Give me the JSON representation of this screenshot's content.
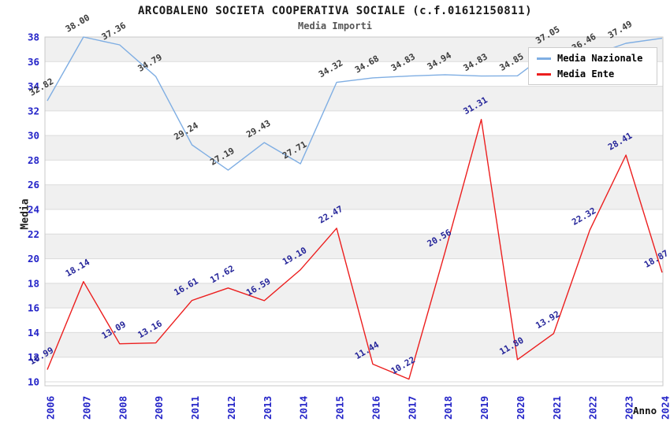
{
  "page": {
    "title": "ARCOBALENO SOCIETA COOPERATIVA SOCIALE (c.f.01612150811)",
    "subtitle": "Media Importi"
  },
  "axes": {
    "y_label": "Media",
    "x_label": "Anno"
  },
  "legend": {
    "position": "top-right",
    "items": [
      {
        "label": "Media Nazionale",
        "color": "#7FAEE3"
      },
      {
        "label": "Media Ente",
        "color": "#EC1E1E"
      }
    ]
  },
  "chart_data": {
    "type": "line",
    "title": "ARCOBALENO SOCIETA COOPERATIVA SOCIALE (c.f.01612150811)",
    "subtitle": "Media Importi",
    "xlabel": "Anno",
    "ylabel": "Media",
    "ylim": [
      10,
      38
    ],
    "yticks": [
      10,
      12,
      14,
      16,
      18,
      20,
      22,
      24,
      26,
      28,
      30,
      32,
      34,
      36,
      38
    ],
    "grid": true,
    "legend_position": "top-right",
    "categories": [
      "2006",
      "2007",
      "2008",
      "2009",
      "2011",
      "2012",
      "2013",
      "2014",
      "2015",
      "2016",
      "2017",
      "2018",
      "2019",
      "2020",
      "2021",
      "2022",
      "2023",
      "2024"
    ],
    "series": [
      {
        "name": "Media Nazionale",
        "color": "#7FAEE3",
        "label_color": "#3C3C3C",
        "values": [
          32.82,
          38.0,
          37.36,
          34.79,
          29.24,
          27.19,
          29.43,
          27.71,
          34.32,
          34.68,
          34.83,
          34.94,
          34.83,
          34.85,
          37.05,
          36.46,
          37.49,
          37.9
        ],
        "labels": [
          "32.82",
          "38.00",
          "37.36",
          "34.79",
          "29.24",
          "27.19",
          "29.43",
          "27.71",
          "34.32",
          "34.68",
          "34.83",
          "34.94",
          "34.83",
          "34.85",
          "37.05",
          "36.46",
          "37.49",
          ""
        ]
      },
      {
        "name": "Media Ente",
        "color": "#EC1E1E",
        "label_color": "#26269A",
        "values": [
          10.99,
          18.14,
          13.09,
          13.16,
          16.61,
          17.62,
          16.59,
          19.1,
          22.47,
          11.44,
          10.22,
          20.56,
          31.31,
          11.8,
          13.92,
          22.32,
          28.41,
          18.87
        ],
        "labels": [
          "10.99",
          "18.14",
          "13.09",
          "13.16",
          "16.61",
          "17.62",
          "16.59",
          "19.10",
          "22.47",
          "11.44",
          "10.22",
          "20.56",
          "31.31",
          "11.80",
          "13.92",
          "22.32",
          "28.41",
          "18.87"
        ]
      }
    ]
  },
  "style": {
    "band_gray": "#F0F0F0",
    "band_white": "#FFFFFF",
    "gridline_color": "#DBDBDB",
    "plot_border_color": "#C9C9C9",
    "tick_label_color": "#2424C8",
    "title_color": "#1A1A1A",
    "subtitle_color": "#555555"
  }
}
